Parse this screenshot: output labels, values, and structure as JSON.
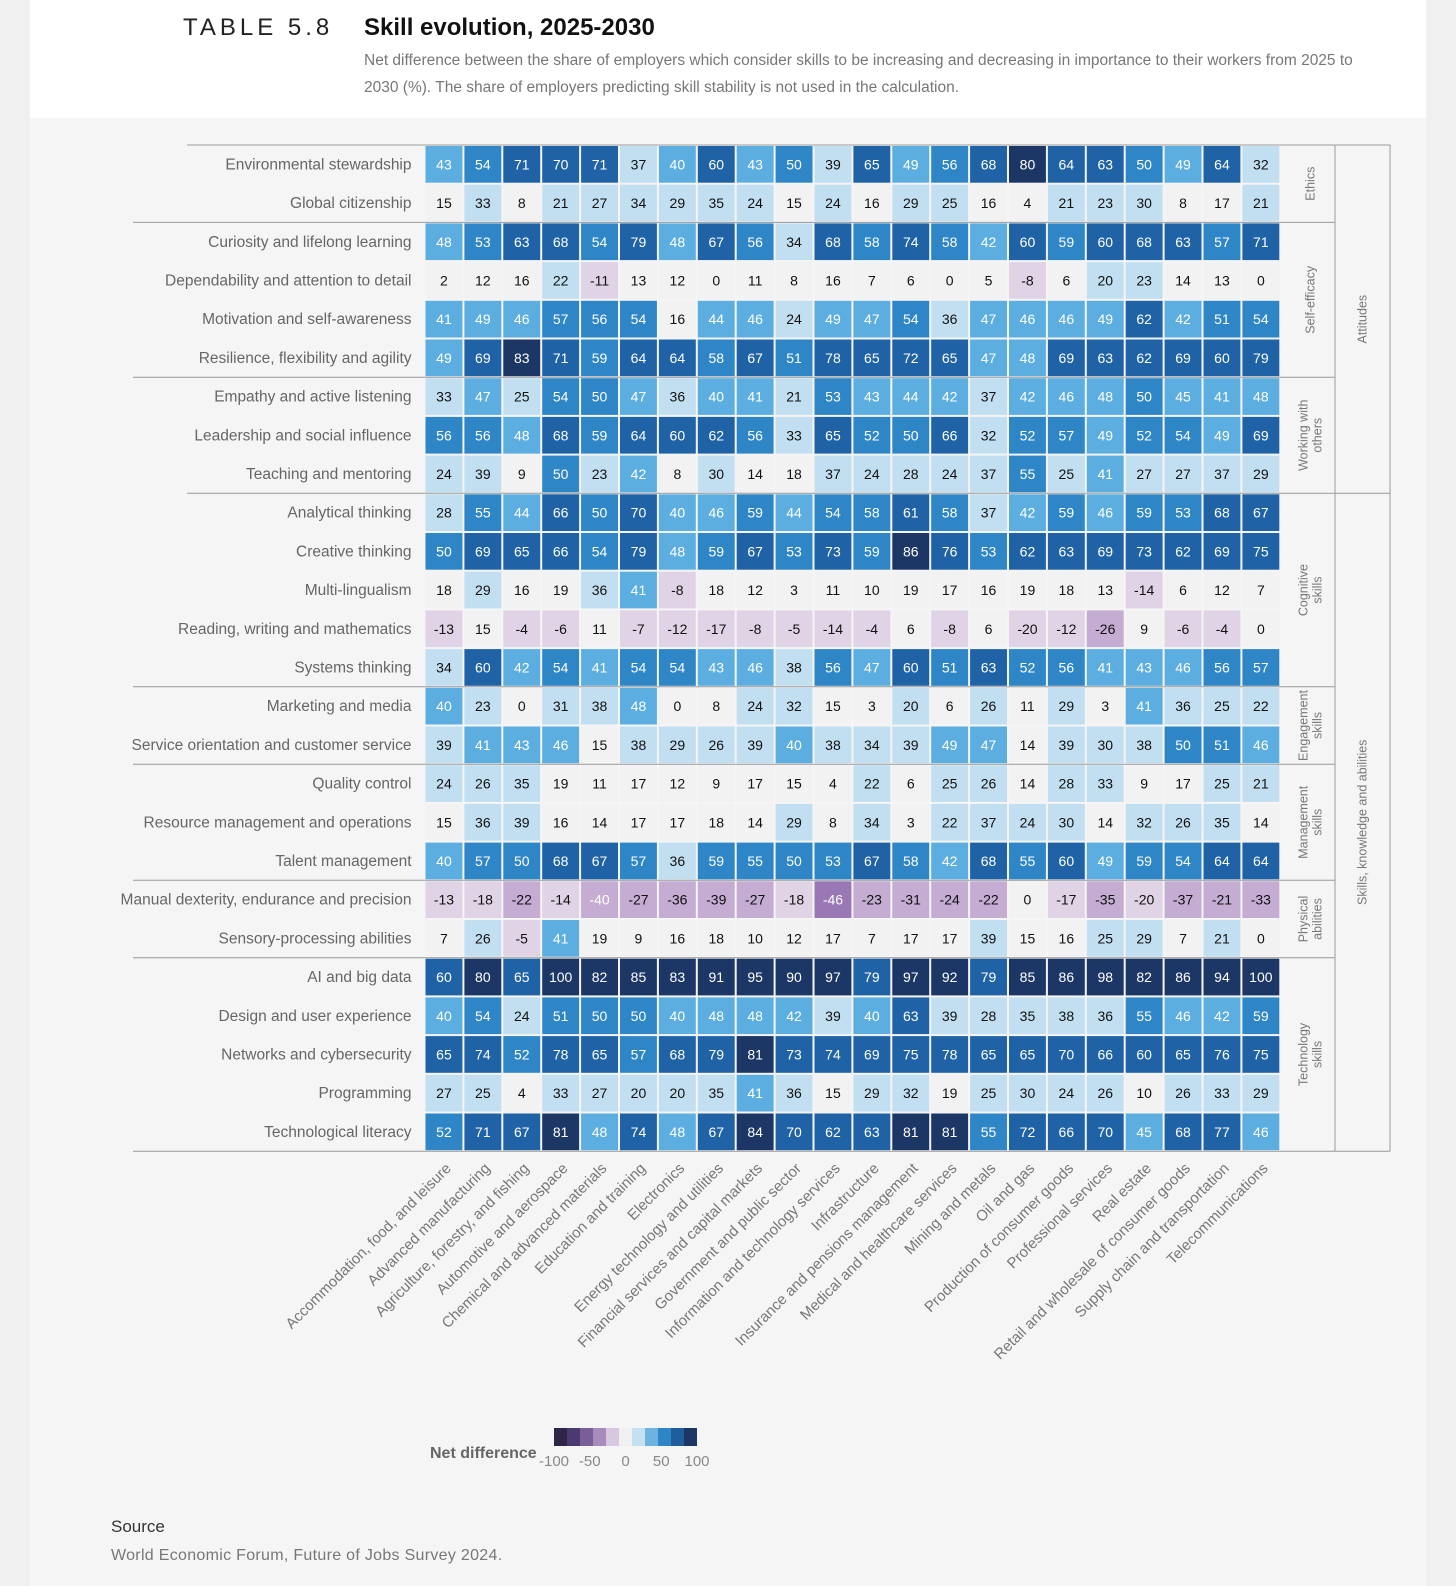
{
  "header": {
    "table_number": "TABLE 5.8",
    "title": "Skill evolution, 2025-2030",
    "subtitle": "Net difference between the share of employers which consider skills to be increasing and decreasing in importance to their workers from 2025 to 2030 (%). The share of employers predicting skill stability is not used in the calculation."
  },
  "chart_data": {
    "type": "heatmap",
    "title": "Skill evolution, 2025-2030",
    "rows": [
      "Environmental stewardship",
      "Global citizenship",
      "Curiosity and lifelong learning",
      "Dependability and attention to detail",
      "Motivation and self-awareness",
      "Resilience, flexibility and agility",
      "Empathy and active listening",
      "Leadership and social influence",
      "Teaching and mentoring",
      "Analytical thinking",
      "Creative thinking",
      "Multi-lingualism",
      "Reading, writing and mathematics",
      "Systems thinking",
      "Marketing and media",
      "Service orientation and customer service",
      "Quality control",
      "Resource management and operations",
      "Talent management",
      "Manual dexterity, endurance and precision",
      "Sensory-processing abilities",
      "AI and big data",
      "Design and user experience",
      "Networks and cybersecurity",
      "Programming",
      "Technological literacy"
    ],
    "columns": [
      "Accommodation, food, and leisure",
      "Advanced manufacturing",
      "Agriculture, forestry, and fishing",
      "Automotive and aerospace",
      "Chemical and advanced materials",
      "Education and training",
      "Electronics",
      "Energy technology and utilities",
      "Financial services and capital markets",
      "Government and public sector",
      "Information and technology services",
      "Infrastructure",
      "Insurance and pensions management",
      "Medical and healthcare services",
      "Mining and metals",
      "Oil and gas",
      "Production of consumer goods",
      "Professional services",
      "Real estate",
      "Retail and wholesale of consumer goods",
      "Supply chain and transportation",
      "Telecommunications"
    ],
    "values": [
      [
        43,
        54,
        71,
        70,
        71,
        37,
        40,
        60,
        43,
        50,
        39,
        65,
        49,
        56,
        68,
        80,
        64,
        63,
        50,
        49,
        64,
        32
      ],
      [
        15,
        33,
        8,
        21,
        27,
        34,
        29,
        35,
        24,
        15,
        24,
        16,
        29,
        25,
        16,
        4,
        21,
        23,
        30,
        8,
        17,
        21
      ],
      [
        48,
        53,
        63,
        68,
        54,
        79,
        48,
        67,
        56,
        34,
        68,
        58,
        74,
        58,
        42,
        60,
        59,
        60,
        68,
        63,
        57,
        71
      ],
      [
        2,
        12,
        16,
        22,
        -11,
        13,
        12,
        0,
        11,
        8,
        16,
        7,
        6,
        0,
        5,
        -8,
        6,
        20,
        23,
        14,
        13,
        0
      ],
      [
        41,
        49,
        46,
        57,
        56,
        54,
        16,
        44,
        46,
        24,
        49,
        47,
        54,
        36,
        47,
        46,
        46,
        49,
        62,
        42,
        51,
        54
      ],
      [
        49,
        69,
        83,
        71,
        59,
        64,
        64,
        58,
        67,
        51,
        78,
        65,
        72,
        65,
        47,
        48,
        69,
        63,
        62,
        69,
        60,
        79
      ],
      [
        33,
        47,
        25,
        54,
        50,
        47,
        36,
        40,
        41,
        21,
        53,
        43,
        44,
        42,
        37,
        42,
        46,
        48,
        50,
        45,
        41,
        48
      ],
      [
        56,
        56,
        48,
        68,
        59,
        64,
        60,
        62,
        56,
        33,
        65,
        52,
        50,
        66,
        32,
        52,
        57,
        49,
        52,
        54,
        49,
        69
      ],
      [
        24,
        39,
        9,
        50,
        23,
        42,
        8,
        30,
        14,
        18,
        37,
        24,
        28,
        24,
        37,
        55,
        25,
        41,
        27,
        27,
        37,
        29
      ],
      [
        28,
        55,
        44,
        66,
        50,
        70,
        40,
        46,
        59,
        44,
        54,
        58,
        61,
        58,
        37,
        42,
        59,
        46,
        59,
        53,
        68,
        67
      ],
      [
        50,
        69,
        65,
        66,
        54,
        79,
        48,
        59,
        67,
        53,
        73,
        59,
        86,
        76,
        53,
        62,
        63,
        69,
        73,
        62,
        69,
        75
      ],
      [
        18,
        29,
        16,
        19,
        36,
        41,
        -8,
        18,
        12,
        3,
        11,
        10,
        19,
        17,
        16,
        19,
        18,
        13,
        -14,
        6,
        12,
        7
      ],
      [
        -13,
        15,
        -4,
        -6,
        11,
        -7,
        -12,
        -17,
        -8,
        -5,
        -14,
        -4,
        6,
        -8,
        6,
        -20,
        -12,
        -26,
        9,
        -6,
        -4,
        0
      ],
      [
        34,
        60,
        42,
        54,
        41,
        54,
        54,
        43,
        46,
        38,
        56,
        47,
        60,
        51,
        63,
        52,
        56,
        41,
        43,
        46,
        56,
        57
      ],
      [
        40,
        23,
        0,
        31,
        38,
        48,
        0,
        8,
        24,
        32,
        15,
        3,
        20,
        6,
        26,
        11,
        29,
        3,
        41,
        36,
        25,
        22
      ],
      [
        39,
        41,
        43,
        46,
        15,
        38,
        29,
        26,
        39,
        40,
        38,
        34,
        39,
        49,
        47,
        14,
        39,
        30,
        38,
        50,
        51,
        46
      ],
      [
        24,
        26,
        35,
        19,
        11,
        17,
        12,
        9,
        17,
        15,
        4,
        22,
        6,
        25,
        26,
        14,
        28,
        33,
        9,
        17,
        25,
        21
      ],
      [
        15,
        36,
        39,
        16,
        14,
        17,
        17,
        18,
        14,
        29,
        8,
        34,
        3,
        22,
        37,
        24,
        30,
        14,
        32,
        26,
        35,
        14
      ],
      [
        40,
        57,
        50,
        68,
        67,
        57,
        36,
        59,
        55,
        50,
        53,
        67,
        58,
        42,
        68,
        55,
        60,
        49,
        59,
        54,
        64,
        64
      ],
      [
        -13,
        -18,
        -22,
        -14,
        -40,
        -27,
        -36,
        -39,
        -27,
        -18,
        -46,
        -23,
        -31,
        -24,
        -22,
        0,
        -17,
        -35,
        -20,
        -37,
        -21,
        -33
      ],
      [
        7,
        26,
        -5,
        41,
        19,
        9,
        16,
        18,
        10,
        12,
        17,
        7,
        17,
        17,
        39,
        15,
        16,
        25,
        29,
        7,
        21,
        0
      ],
      [
        60,
        80,
        65,
        100,
        82,
        85,
        83,
        91,
        95,
        90,
        97,
        79,
        97,
        92,
        79,
        85,
        86,
        98,
        82,
        86,
        94,
        100
      ],
      [
        40,
        54,
        24,
        51,
        50,
        50,
        40,
        48,
        48,
        42,
        39,
        40,
        63,
        39,
        28,
        35,
        38,
        36,
        55,
        46,
        42,
        59
      ],
      [
        65,
        74,
        52,
        78,
        65,
        57,
        68,
        79,
        81,
        73,
        74,
        69,
        75,
        78,
        65,
        65,
        70,
        66,
        60,
        65,
        76,
        75
      ],
      [
        27,
        25,
        4,
        33,
        27,
        20,
        20,
        35,
        41,
        36,
        15,
        29,
        32,
        19,
        25,
        30,
        24,
        26,
        10,
        26,
        33,
        29
      ],
      [
        52,
        71,
        67,
        81,
        48,
        74,
        48,
        67,
        84,
        70,
        62,
        63,
        81,
        81,
        55,
        72,
        66,
        70,
        45,
        68,
        77,
        46
      ]
    ],
    "groups": [
      {
        "name": "Ethics",
        "row_start": 0,
        "row_end": 1
      },
      {
        "name": "Self-efficacy",
        "row_start": 2,
        "row_end": 5
      },
      {
        "name": "Working with others",
        "row_start": 6,
        "row_end": 8
      },
      {
        "name": "Cognitive skills",
        "row_start": 9,
        "row_end": 13
      },
      {
        "name": "Engagement skills",
        "row_start": 14,
        "row_end": 15
      },
      {
        "name": "Management skills",
        "row_start": 16,
        "row_end": 18
      },
      {
        "name": "Physical abilities",
        "row_start": 19,
        "row_end": 20
      },
      {
        "name": "Technology skills",
        "row_start": 21,
        "row_end": 25
      }
    ],
    "supergroups": [
      {
        "name": "Attitudes",
        "row_start": 0,
        "row_end": 8
      },
      {
        "name": "Skills, knowledge and abilities",
        "row_start": 9,
        "row_end": 25
      }
    ],
    "legend": {
      "title": "Net difference",
      "range": [
        -100,
        100
      ],
      "ticks": [
        "-100",
        "-50",
        "0",
        "50",
        "100"
      ],
      "colors": [
        "#2e2547",
        "#4a3a70",
        "#7a5e9a",
        "#a78bbd",
        "#d7c8e0",
        "#f0f0f0",
        "#c5e0f0",
        "#6cb3df",
        "#2f86c6",
        "#1f5e9c",
        "#1c3666"
      ]
    }
  },
  "source": {
    "heading": "Source",
    "text": "World Economic Forum, Future of Jobs Survey 2024."
  }
}
